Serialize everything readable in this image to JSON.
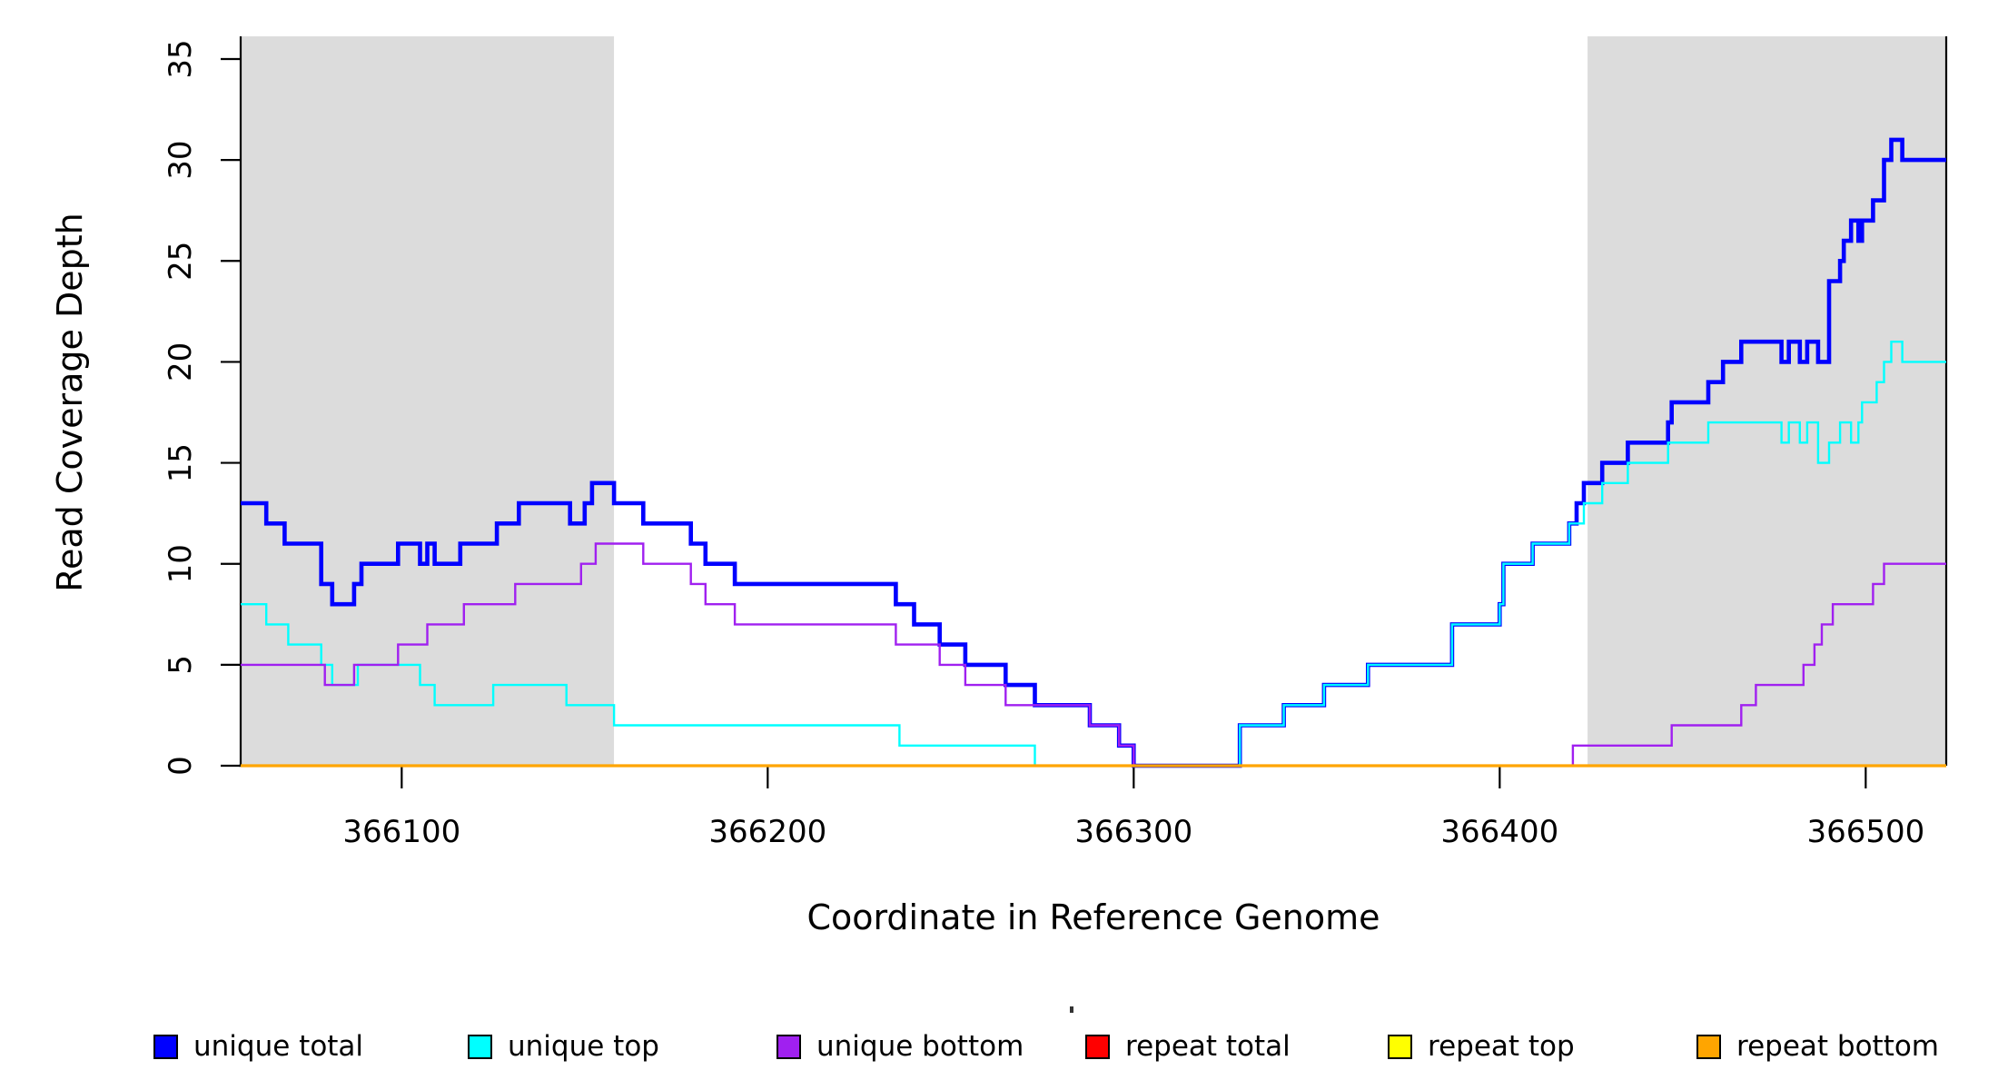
{
  "chart_data": {
    "type": "line",
    "subtype": "step-after",
    "title": "",
    "xlabel": "Coordinate in Reference Genome",
    "ylabel": "Read Coverage Depth",
    "xlim": [
      366056,
      366522
    ],
    "ylim": [
      0,
      35
    ],
    "x_ticks": [
      366100,
      366200,
      366300,
      366400,
      366500
    ],
    "y_ticks": [
      0,
      5,
      10,
      15,
      20,
      25,
      30,
      35
    ],
    "grid": false,
    "legend_position": "bottom",
    "shaded_regions": [
      {
        "x0": 366056,
        "x1": 366158,
        "color": "#DCDCDC"
      },
      {
        "x0": 366424,
        "x1": 366522,
        "color": "#DCDCDC"
      }
    ],
    "x_end": 366522,
    "series": [
      {
        "name": "unique total",
        "color": "#0000FF",
        "width": 4.6,
        "steps": [
          [
            366056,
            13
          ],
          [
            366063,
            12
          ],
          [
            366068,
            11
          ],
          [
            366078,
            9
          ],
          [
            366081,
            8
          ],
          [
            366087,
            9
          ],
          [
            366089,
            10
          ],
          [
            366099,
            11
          ],
          [
            366105,
            10
          ],
          [
            366107,
            11
          ],
          [
            366109,
            10
          ],
          [
            366116,
            11
          ],
          [
            366126,
            12
          ],
          [
            366132,
            13
          ],
          [
            366146,
            12
          ],
          [
            366150,
            13
          ],
          [
            366152,
            14
          ],
          [
            366158,
            13
          ],
          [
            366166,
            12
          ],
          [
            366179,
            11
          ],
          [
            366183,
            10
          ],
          [
            366191,
            9
          ],
          [
            366235,
            8
          ],
          [
            366240,
            7
          ],
          [
            366247,
            6
          ],
          [
            366254,
            5
          ],
          [
            366265,
            4
          ],
          [
            366273,
            3
          ],
          [
            366288,
            2
          ],
          [
            366296,
            1
          ],
          [
            366300,
            0
          ],
          [
            366329,
            2
          ],
          [
            366341,
            3
          ],
          [
            366352,
            4
          ],
          [
            366364,
            5
          ],
          [
            366387,
            7
          ],
          [
            366400,
            8
          ],
          [
            366401,
            10
          ],
          [
            366409,
            11
          ],
          [
            366419,
            12
          ],
          [
            366421,
            13
          ],
          [
            366423,
            14
          ],
          [
            366428,
            15
          ],
          [
            366435,
            16
          ],
          [
            366446,
            17
          ],
          [
            366447,
            18
          ],
          [
            366457,
            19
          ],
          [
            366461,
            20
          ],
          [
            366466,
            21
          ],
          [
            366477,
            20
          ],
          [
            366479,
            21
          ],
          [
            366482,
            20
          ],
          [
            366484,
            21
          ],
          [
            366487,
            20
          ],
          [
            366490,
            24
          ],
          [
            366493,
            25
          ],
          [
            366494,
            26
          ],
          [
            366496,
            27
          ],
          [
            366498,
            26
          ],
          [
            366499,
            27
          ],
          [
            366502,
            28
          ],
          [
            366505,
            30
          ],
          [
            366507,
            31
          ],
          [
            366510,
            30
          ]
        ]
      },
      {
        "name": "unique top",
        "color": "#00FFFF",
        "width": 2.4,
        "steps": [
          [
            366056,
            8
          ],
          [
            366063,
            7
          ],
          [
            366069,
            6
          ],
          [
            366078,
            5
          ],
          [
            366081,
            4
          ],
          [
            366088,
            5
          ],
          [
            366105,
            4
          ],
          [
            366109,
            3
          ],
          [
            366125,
            4
          ],
          [
            366145,
            3
          ],
          [
            366158,
            2
          ],
          [
            366236,
            1
          ],
          [
            366273,
            0
          ],
          [
            366329,
            2
          ],
          [
            366341,
            3
          ],
          [
            366352,
            4
          ],
          [
            366364,
            5
          ],
          [
            366387,
            7
          ],
          [
            366400,
            8
          ],
          [
            366401,
            10
          ],
          [
            366409,
            11
          ],
          [
            366419,
            12
          ],
          [
            366423,
            13
          ],
          [
            366428,
            14
          ],
          [
            366435,
            15
          ],
          [
            366446,
            16
          ],
          [
            366457,
            17
          ],
          [
            366477,
            16
          ],
          [
            366479,
            17
          ],
          [
            366482,
            16
          ],
          [
            366484,
            17
          ],
          [
            366487,
            15
          ],
          [
            366490,
            16
          ],
          [
            366493,
            17
          ],
          [
            366496,
            16
          ],
          [
            366498,
            17
          ],
          [
            366499,
            18
          ],
          [
            366503,
            19
          ],
          [
            366505,
            20
          ],
          [
            366507,
            21
          ],
          [
            366510,
            20
          ]
        ]
      },
      {
        "name": "unique bottom",
        "color": "#A020F0",
        "width": 2.4,
        "steps": [
          [
            366056,
            5
          ],
          [
            366079,
            4
          ],
          [
            366087,
            5
          ],
          [
            366099,
            6
          ],
          [
            366107,
            7
          ],
          [
            366117,
            8
          ],
          [
            366131,
            9
          ],
          [
            366149,
            10
          ],
          [
            366153,
            11
          ],
          [
            366166,
            10
          ],
          [
            366179,
            9
          ],
          [
            366183,
            8
          ],
          [
            366191,
            7
          ],
          [
            366235,
            6
          ],
          [
            366247,
            5
          ],
          [
            366254,
            4
          ],
          [
            366265,
            3
          ],
          [
            366288,
            2
          ],
          [
            366296,
            1
          ],
          [
            366300,
            0
          ],
          [
            366420,
            1
          ],
          [
            366447,
            2
          ],
          [
            366466,
            3
          ],
          [
            366470,
            4
          ],
          [
            366483,
            5
          ],
          [
            366486,
            6
          ],
          [
            366488,
            7
          ],
          [
            366491,
            8
          ],
          [
            366502,
            9
          ],
          [
            366505,
            10
          ]
        ]
      },
      {
        "name": "repeat total",
        "color": "#FF0000",
        "width": 2.4,
        "steps": [
          [
            366056,
            0
          ]
        ]
      },
      {
        "name": "repeat top",
        "color": "#FFFF00",
        "width": 2.4,
        "steps": [
          [
            366056,
            0
          ]
        ]
      },
      {
        "name": "repeat bottom",
        "color": "#FFA500",
        "width": 3.2,
        "steps": [
          [
            366056,
            0
          ]
        ]
      }
    ]
  },
  "legend": {
    "items": [
      {
        "label": "unique total",
        "color": "#0000FF"
      },
      {
        "label": "unique top",
        "color": "#00FFFF"
      },
      {
        "label": "unique bottom",
        "color": "#A020F0"
      },
      {
        "label": "repeat total",
        "color": "#FF0000"
      },
      {
        "label": "repeat top",
        "color": "#FFFF00"
      },
      {
        "label": "repeat bottom",
        "color": "#FFA500"
      }
    ]
  },
  "axes": {
    "x_title": "Coordinate in Reference Genome",
    "y_title": "Read Coverage Depth"
  }
}
